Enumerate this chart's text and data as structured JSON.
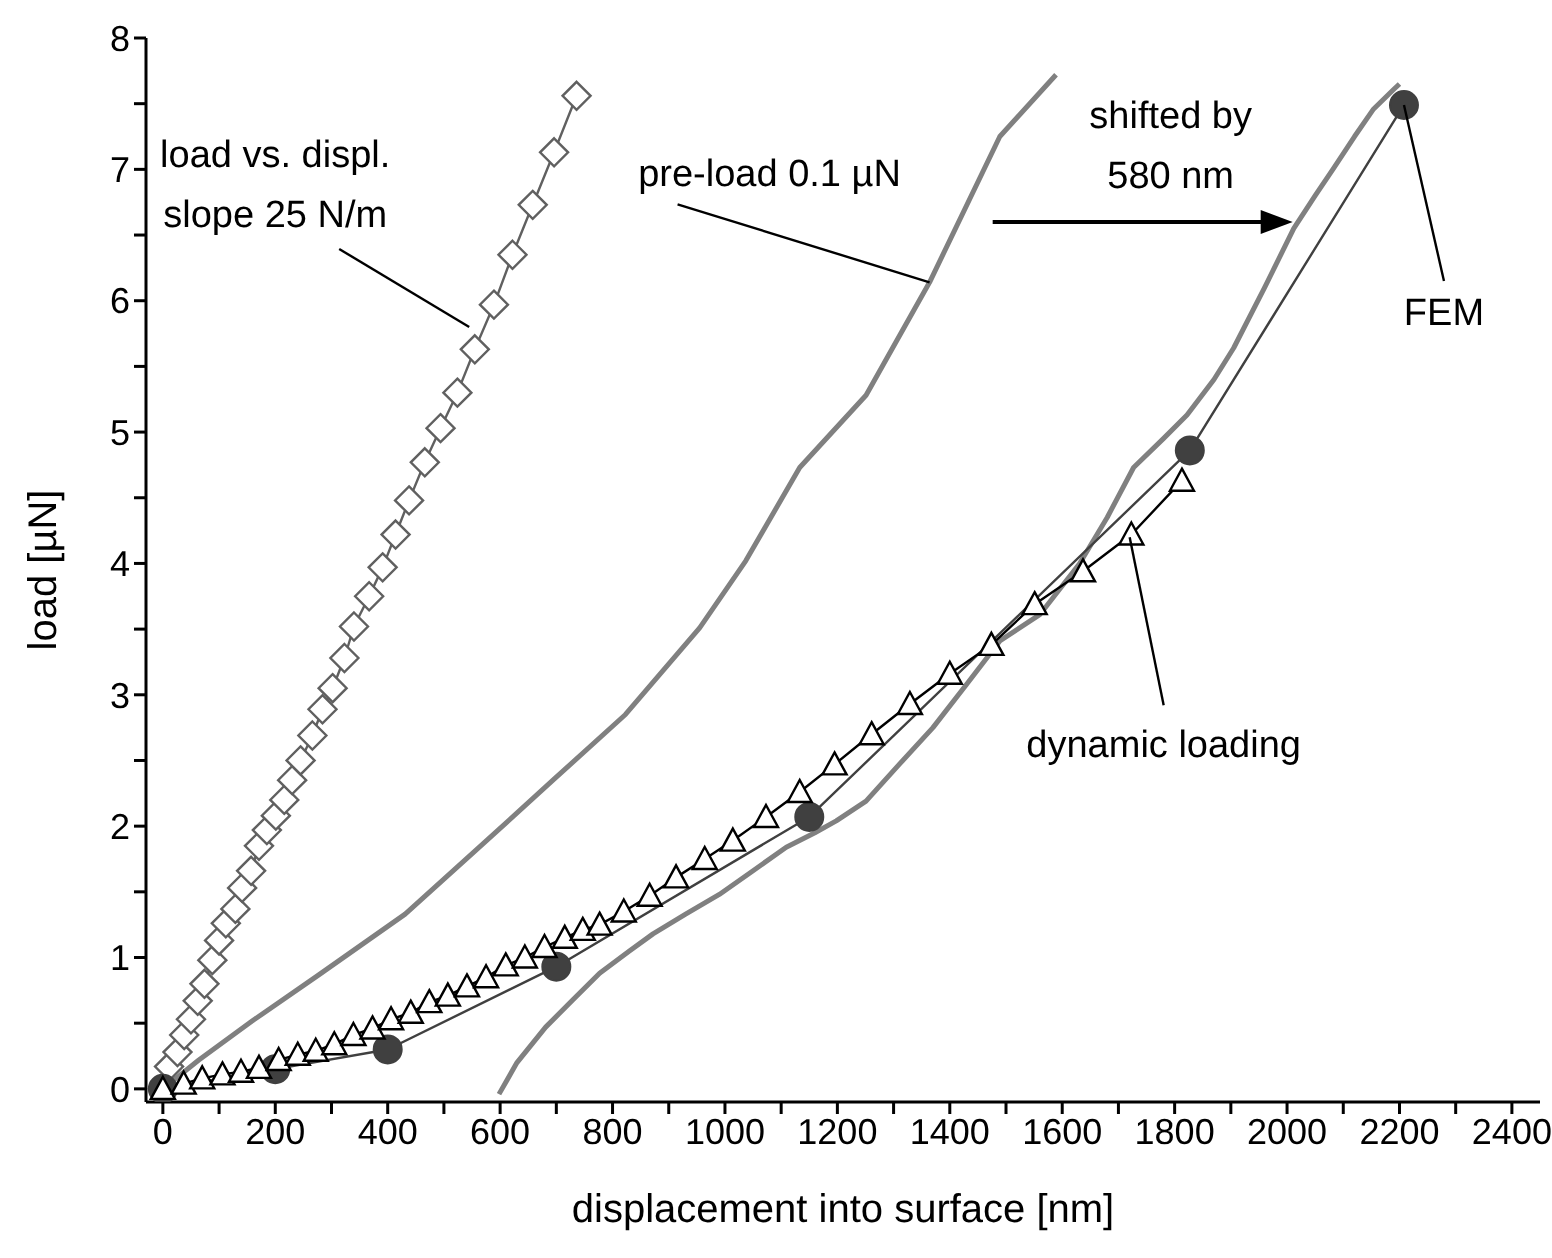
{
  "chart_data": {
    "type": "line",
    "xlabel": "displacement into surface [nm]",
    "ylabel": "load [µN]",
    "xlim": [
      -30,
      2450
    ],
    "ylim": [
      -0.1,
      8
    ],
    "xticks": [
      0,
      {
        "value": 100,
        "label": null
      },
      200,
      {
        "value": 300,
        "label": null
      },
      400,
      {
        "value": 500,
        "label": null
      },
      600,
      {
        "value": 700,
        "label": null
      },
      800,
      {
        "value": 900,
        "label": null
      },
      1000,
      {
        "value": 1100,
        "label": null
      },
      1200,
      {
        "value": 1300,
        "label": null
      },
      1400,
      {
        "value": 1500,
        "label": null
      },
      1600,
      {
        "value": 1700,
        "label": null
      },
      1800,
      {
        "value": 1900,
        "label": null
      },
      2000,
      {
        "value": 2100,
        "label": null
      },
      2200,
      {
        "value": 2300,
        "label": null
      },
      2400
    ],
    "yticks": [
      0,
      {
        "value": 0.5,
        "label": null
      },
      1,
      {
        "value": 1.5,
        "label": null
      },
      2,
      {
        "value": 2.5,
        "label": null
      },
      3,
      {
        "value": 3.5,
        "label": null
      },
      4,
      {
        "value": 4.5,
        "label": null
      },
      5,
      {
        "value": 5.5,
        "label": null
      },
      6,
      {
        "value": 6.5,
        "label": null
      },
      7,
      {
        "value": 7.5,
        "label": null
      },
      8
    ],
    "series": [
      {
        "color": "#606060",
        "marker": "diamond",
        "x": [
          0,
          11,
          26,
          38,
          50,
          62,
          74,
          88,
          100,
          112,
          129,
          141,
          157,
          171,
          185,
          201,
          216,
          230,
          245,
          266,
          284,
          302,
          323,
          340,
          367,
          391,
          414,
          438,
          466,
          494,
          524,
          555,
          589,
          622,
          658,
          696,
          736
        ],
        "values": [
          0,
          0.17,
          0.28,
          0.41,
          0.53,
          0.67,
          0.8,
          0.98,
          1.13,
          1.26,
          1.37,
          1.53,
          1.66,
          1.85,
          1.97,
          2.08,
          2.2,
          2.35,
          2.5,
          2.69,
          2.89,
          3.05,
          3.28,
          3.52,
          3.75,
          3.97,
          4.22,
          4.48,
          4.77,
          5.03,
          5.3,
          5.63,
          5.97,
          6.35,
          6.73,
          7.13,
          7.56
        ]
      },
      {
        "color": "#808080",
        "marker": "none",
        "x": [
          0,
          64,
          160,
          278,
          431,
          563,
          694,
          823,
          955,
          1037,
          1133,
          1251,
          1364,
          1489,
          1589
        ],
        "values": [
          0,
          0.22,
          0.52,
          0.87,
          1.33,
          1.84,
          2.35,
          2.85,
          3.51,
          4.02,
          4.73,
          5.28,
          6.14,
          7.25,
          7.72
        ]
      },
      {
        "color": "#808080",
        "marker": "none",
        "x": [
          598,
          630,
          681,
          730,
          777,
          830,
          872,
          930,
          990,
          1050,
          1109,
          1160,
          1198,
          1251,
          1310,
          1370,
          1430,
          1489,
          1560,
          1631,
          1680,
          1727,
          1780,
          1822,
          1870,
          1905,
          1960,
          2012,
          2050,
          2083,
          2120,
          2154,
          2190,
          2200
        ],
        "values": [
          -0.04,
          0.2,
          0.47,
          0.68,
          0.88,
          1.05,
          1.18,
          1.33,
          1.48,
          1.66,
          1.84,
          1.95,
          2.04,
          2.19,
          2.47,
          2.75,
          3.08,
          3.41,
          3.61,
          4.0,
          4.35,
          4.73,
          4.95,
          5.13,
          5.4,
          5.64,
          6.1,
          6.55,
          6.8,
          7.01,
          7.25,
          7.46,
          7.61,
          7.65
        ]
      },
      {
        "color": "#404040",
        "marker": "circle",
        "x": [
          0,
          200,
          400,
          700,
          1150,
          1827,
          2208
        ],
        "values": [
          0,
          0.15,
          0.3,
          0.93,
          2.07,
          4.86,
          7.49
        ]
      },
      {
        "color": "#000000",
        "marker": "triangle",
        "x": [
          0,
          37,
          70,
          106,
          139,
          171,
          206,
          240,
          272,
          305,
          339,
          373,
          406,
          441,
          474,
          507,
          541,
          575,
          610,
          644,
          679,
          715,
          747,
          777,
          820,
          866,
          913,
          964,
          1014,
          1073,
          1133,
          1195,
          1261,
          1329,
          1400,
          1474,
          1551,
          1637,
          1723,
          1813
        ],
        "values": [
          0,
          0.04,
          0.08,
          0.11,
          0.13,
          0.16,
          0.22,
          0.26,
          0.29,
          0.34,
          0.41,
          0.46,
          0.53,
          0.58,
          0.66,
          0.71,
          0.78,
          0.85,
          0.94,
          1.0,
          1.08,
          1.15,
          1.21,
          1.25,
          1.35,
          1.47,
          1.61,
          1.75,
          1.89,
          2.07,
          2.26,
          2.47,
          2.7,
          2.93,
          3.16,
          3.38,
          3.69,
          3.94,
          4.22,
          4.63
        ]
      }
    ],
    "annotations": [
      {
        "text": "load vs. displ.\nslope 25 N/m",
        "x": 545,
        "y": 5.8
      },
      {
        "text": "pre-load 0.1 µN",
        "x": 1364,
        "y": 6.14
      },
      {
        "text": "shifted by\n580 nm",
        "x": 2010,
        "y": 6.6
      },
      {
        "text": "FEM",
        "x": 2208,
        "y": 7.49
      },
      {
        "text": "dynamic loading",
        "x": 1720,
        "y": 4.2
      }
    ]
  }
}
